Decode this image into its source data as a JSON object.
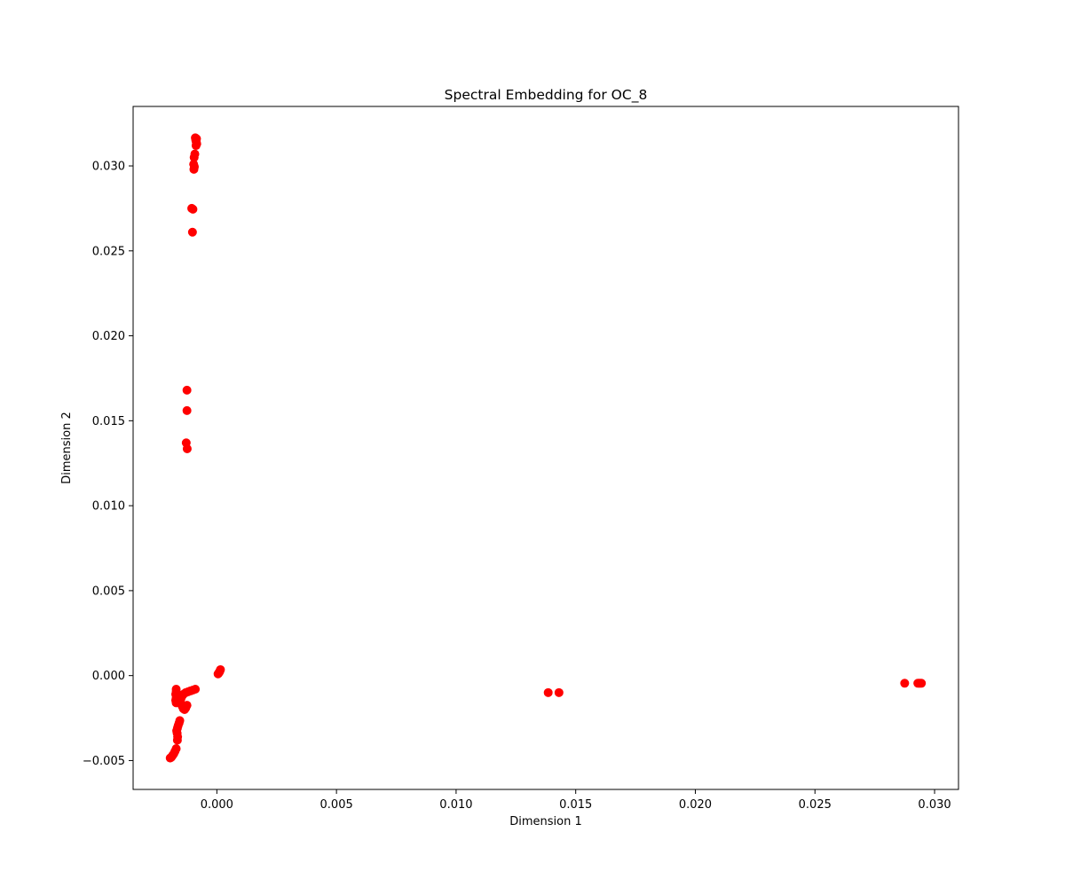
{
  "chart_data": {
    "type": "scatter",
    "title": "Spectral Embedding for OC_8",
    "xlabel": "Dimension 1",
    "ylabel": "Dimension 2",
    "xlim": [
      -0.0035,
      0.031
    ],
    "ylim": [
      -0.0067,
      0.0335
    ],
    "xticks": [
      0.0,
      0.005,
      0.01,
      0.015,
      0.02,
      0.025,
      0.03
    ],
    "xtick_labels": [
      "0.000",
      "0.005",
      "0.010",
      "0.015",
      "0.020",
      "0.025",
      "0.030"
    ],
    "yticks": [
      -0.005,
      0.0,
      0.005,
      0.01,
      0.015,
      0.02,
      0.025,
      0.03
    ],
    "ytick_labels": [
      "−0.005",
      "0.000",
      "0.005",
      "0.010",
      "0.015",
      "0.020",
      "0.025",
      "0.030"
    ],
    "grid": false,
    "legend": "none",
    "marker_color": "#ff0000",
    "series": [
      {
        "points": [
          [
            -0.0009,
            0.03165
          ],
          [
            -0.00085,
            0.0316
          ],
          [
            -0.00088,
            0.0315
          ],
          [
            -0.00086,
            0.0314
          ],
          [
            -0.00084,
            0.0313
          ],
          [
            -0.00087,
            0.0312
          ],
          [
            -0.00092,
            0.0307
          ],
          [
            -0.00095,
            0.0305
          ],
          [
            -0.00097,
            0.0301
          ],
          [
            -0.00094,
            0.02995
          ],
          [
            -0.00096,
            0.0298
          ],
          [
            -0.00105,
            0.0275
          ],
          [
            -0.001,
            0.02745
          ],
          [
            -0.00102,
            0.0261
          ],
          [
            -0.00125,
            0.0168
          ],
          [
            -0.00125,
            0.0156
          ],
          [
            -0.00128,
            0.0137
          ],
          [
            -0.00124,
            0.01335
          ],
          [
            0.0001,
            0.0002
          ],
          [
            0.00015,
            0.00035
          ],
          [
            5e-05,
            0.0001
          ],
          [
            0.00012,
            0.00025
          ],
          [
            8e-05,
            0.00015
          ],
          [
            -0.0009,
            -0.0008
          ],
          [
            -0.001,
            -0.00085
          ],
          [
            -0.0011,
            -0.0009
          ],
          [
            -0.0012,
            -0.00095
          ],
          [
            -0.0013,
            -0.001
          ],
          [
            -0.0014,
            -0.0011
          ],
          [
            -0.00145,
            -0.0012
          ],
          [
            -0.0015,
            -0.00135
          ],
          [
            -0.00155,
            -0.0015
          ],
          [
            -0.0015,
            -0.00165
          ],
          [
            -0.00145,
            -0.0018
          ],
          [
            -0.0014,
            -0.00195
          ],
          [
            -0.00135,
            -0.002
          ],
          [
            -0.0013,
            -0.0019
          ],
          [
            -0.00125,
            -0.00175
          ],
          [
            -0.0017,
            -0.0008
          ],
          [
            -0.0017,
            -0.00095
          ],
          [
            -0.00172,
            -0.0011
          ],
          [
            -0.0017,
            -0.0013
          ],
          [
            -0.00172,
            -0.00145
          ],
          [
            -0.0017,
            -0.0016
          ],
          [
            -0.0016,
            -0.00155
          ],
          [
            -0.00165,
            -0.0015
          ],
          [
            -0.00155,
            -0.00265
          ],
          [
            -0.00158,
            -0.0028
          ],
          [
            -0.00162,
            -0.00295
          ],
          [
            -0.00165,
            -0.0031
          ],
          [
            -0.00168,
            -0.00325
          ],
          [
            -0.00166,
            -0.0034
          ],
          [
            -0.00164,
            -0.0036
          ],
          [
            -0.00165,
            -0.0038
          ],
          [
            -0.0017,
            -0.0043
          ],
          [
            -0.00175,
            -0.00445
          ],
          [
            -0.0018,
            -0.0046
          ],
          [
            -0.00185,
            -0.0047
          ],
          [
            -0.0019,
            -0.0048
          ],
          [
            -0.00195,
            -0.00485
          ],
          [
            0.01385,
            -0.001
          ],
          [
            0.0143,
            -0.001
          ],
          [
            0.02875,
            -0.00045
          ],
          [
            0.0293,
            -0.00045
          ],
          [
            0.02935,
            -0.00045
          ],
          [
            0.0294,
            -0.00045
          ],
          [
            0.02945,
            -0.00045
          ]
        ]
      }
    ]
  }
}
